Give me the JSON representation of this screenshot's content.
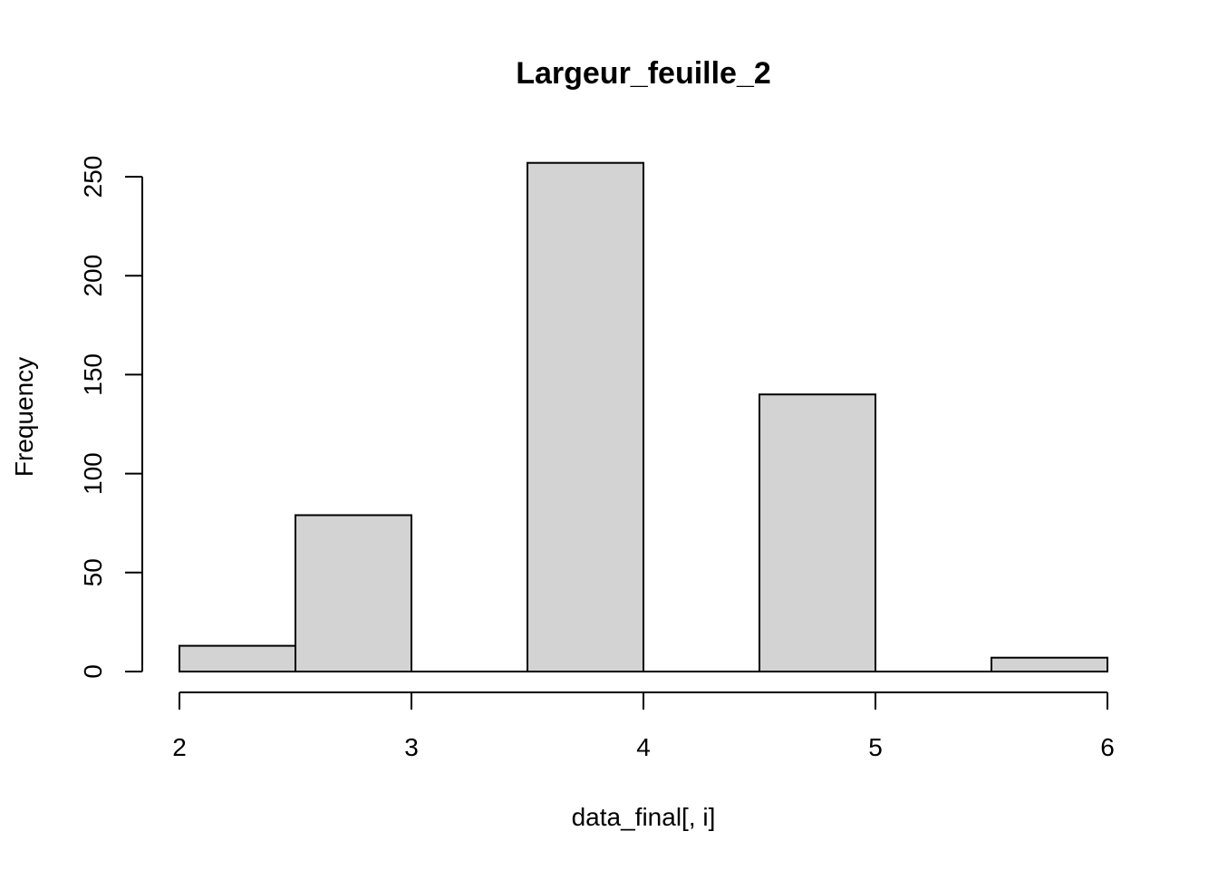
{
  "chart_data": {
    "type": "bar",
    "title": "Largeur_feuille_2",
    "xlabel": "data_final[, i]",
    "ylabel": "Frequency",
    "bins": [
      {
        "from": 2.0,
        "to": 2.5,
        "count": 13
      },
      {
        "from": 2.5,
        "to": 3.0,
        "count": 79
      },
      {
        "from": 3.0,
        "to": 3.5,
        "count": 0
      },
      {
        "from": 3.5,
        "to": 4.0,
        "count": 257
      },
      {
        "from": 4.0,
        "to": 4.5,
        "count": 0
      },
      {
        "from": 4.5,
        "to": 5.0,
        "count": 140
      },
      {
        "from": 5.0,
        "to": 5.5,
        "count": 0
      },
      {
        "from": 5.5,
        "to": 6.0,
        "count": 7
      }
    ],
    "xlim": [
      2,
      6
    ],
    "ylim": [
      0,
      250
    ],
    "x_ticks": [
      2,
      3,
      4,
      5,
      6
    ],
    "y_ticks": [
      0,
      50,
      100,
      150,
      200,
      250
    ],
    "grid": false,
    "bar_color": "#d3d3d3",
    "edge_color": "#000000"
  }
}
